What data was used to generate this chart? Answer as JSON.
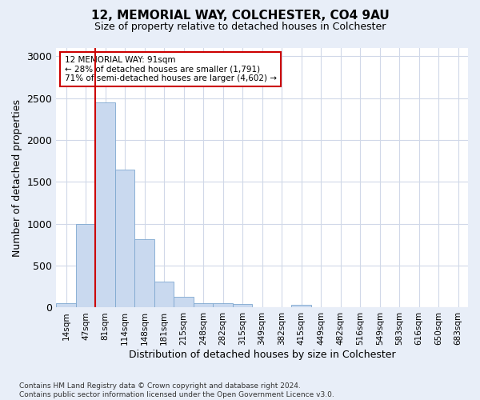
{
  "title1": "12, MEMORIAL WAY, COLCHESTER, CO4 9AU",
  "title2": "Size of property relative to detached houses in Colchester",
  "xlabel": "Distribution of detached houses by size in Colchester",
  "ylabel": "Number of detached properties",
  "bar_labels": [
    "14sqm",
    "47sqm",
    "81sqm",
    "114sqm",
    "148sqm",
    "181sqm",
    "215sqm",
    "248sqm",
    "282sqm",
    "315sqm",
    "349sqm",
    "382sqm",
    "415sqm",
    "449sqm",
    "482sqm",
    "516sqm",
    "549sqm",
    "583sqm",
    "616sqm",
    "650sqm",
    "683sqm"
  ],
  "bar_values": [
    55,
    1000,
    2450,
    1650,
    820,
    310,
    130,
    55,
    50,
    40,
    0,
    0,
    30,
    0,
    0,
    0,
    0,
    0,
    0,
    0,
    0
  ],
  "bar_color": "#c9d9ef",
  "bar_edgecolor": "#7ea8d0",
  "grid_color": "#d0d8e8",
  "vline_x_index": 2,
  "vline_color": "#cc0000",
  "annotation_text": "12 MEMORIAL WAY: 91sqm\n← 28% of detached houses are smaller (1,791)\n71% of semi-detached houses are larger (4,602) →",
  "annotation_box_color": "#cc0000",
  "ylim": [
    0,
    3100
  ],
  "yticks": [
    0,
    500,
    1000,
    1500,
    2000,
    2500,
    3000
  ],
  "footnote": "Contains HM Land Registry data © Crown copyright and database right 2024.\nContains public sector information licensed under the Open Government Licence v3.0.",
  "background_color": "#e8eef8",
  "plot_background_color": "#ffffff"
}
